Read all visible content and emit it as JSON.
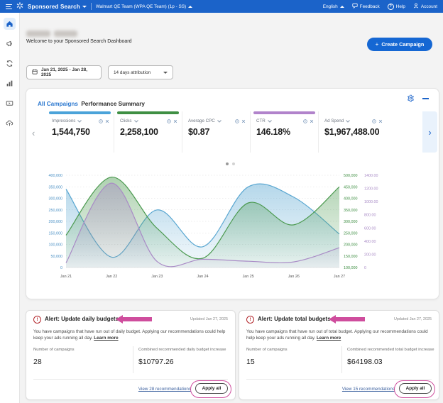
{
  "navbar": {
    "product": "Sponsored Search",
    "team": "Walmart QE Team (WPA QE Team) (1p - SS)",
    "language": "English",
    "feedback_label": "Feedback",
    "help_label": "Help",
    "account_label": "Account"
  },
  "sidebar": {
    "icons": [
      "home",
      "megaphone",
      "sync",
      "bar-chart",
      "video",
      "cloud-upload"
    ],
    "active": "home"
  },
  "header": {
    "welcome": "Welcome to your Sponsored Search Dashboard",
    "create_campaign_label": "Create Campaign",
    "date_range": "Jan 21, 2025 - Jan 28, 2025",
    "attribution": "14 days attribution"
  },
  "summary_card": {
    "title_link": "All Campaigns",
    "title_rest": "Performance Summary",
    "metrics": [
      {
        "label": "Impressions",
        "value": "1,544,750",
        "accent": "#4BA3D9",
        "selected": true
      },
      {
        "label": "Clicks",
        "value": "2,258,100",
        "accent": "#3F8F43",
        "selected": true
      },
      {
        "label": "Average CPC",
        "value": "$0.87",
        "accent": "",
        "selected": false
      },
      {
        "label": "CTR",
        "value": "146.18%",
        "accent": "#B183CB",
        "selected": true
      },
      {
        "label": "Ad Spend",
        "value": "$1,967,488.00",
        "accent": "",
        "selected": false
      }
    ],
    "carousel": {
      "pages": 2,
      "active_page": 1
    }
  },
  "chart_data": {
    "type": "area",
    "title": "",
    "legend": "none",
    "grid": true,
    "x": [
      "Jan 21",
      "Jan 22",
      "Jan 23",
      "Jan 24",
      "Jan 25",
      "Jan 26",
      "Jan 27"
    ],
    "series": [
      {
        "name": "Impressions",
        "axis": "left",
        "color": "#5AA7D1",
        "values": [
          340000,
          45000,
          250000,
          90000,
          350000,
          305000,
          145000
        ]
      },
      {
        "name": "Clicks",
        "axis": "right_green",
        "color": "#4C9A50",
        "values": [
          240000,
          492000,
          270000,
          140000,
          380000,
          285000,
          450000
        ]
      },
      {
        "name": "CTR",
        "axis": "right_purple",
        "color": "#A98BC6",
        "values": [
          70,
          1280,
          90,
          125,
          95,
          85,
          300
        ]
      }
    ],
    "axes": {
      "left": {
        "min": 0,
        "max": 400000,
        "step": 50000,
        "color": "#4A90C4",
        "format": "int"
      },
      "right_green": {
        "min": 100000,
        "max": 500000,
        "step": 50000,
        "color": "#3F8F43",
        "format": "int"
      },
      "right_purple": {
        "min": 0,
        "max": 1400,
        "step": 200,
        "color": "#A98BC6",
        "format": "2dp"
      }
    }
  },
  "alerts": [
    {
      "title": "Alert: Update daily budgets",
      "updated": "Updated Jan 27, 2025",
      "body": "You have campaigns that have run out of daily budget. Applying our recommendations could help keep your ads running all day.",
      "learn_more": "Learn more",
      "stat1_label": "Number of campaigns",
      "stat1_value": "28",
      "stat2_label": "Combined recommended daily budget increase",
      "stat2_value": "$10797.26",
      "view_link": "View 28 recommendations",
      "apply_label": "Apply all"
    },
    {
      "title": "Alert: Update total budgets",
      "updated": "Updated Jan 27, 2025",
      "body": "You have campaigns that have run out of total budget. Applying our recommendations could help keep your ads running all day.",
      "learn_more": "Learn more",
      "stat1_label": "Number of campaigns",
      "stat1_value": "15",
      "stat2_label": "Combined recommended total budget increase",
      "stat2_value": "$64198.03",
      "view_link": "View 15 recommendations",
      "apply_label": "Apply all"
    }
  ],
  "colors": {
    "navbar": "#1B63C9",
    "primary_button": "#1567D3",
    "link_blue": "#2A77CF",
    "alert_red": "#B3282D",
    "annotation_pink": "#CF4D9D"
  }
}
